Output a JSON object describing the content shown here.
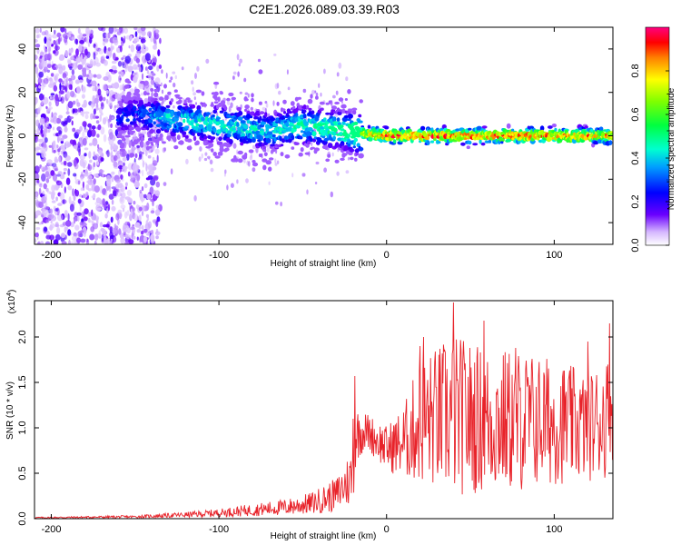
{
  "title": "C2E1.2026.089.03.39.R03",
  "chart_data": [
    {
      "type": "heatmap",
      "name": "spectrogram",
      "xlabel": "Height of straight line (km)",
      "ylabel": "Frequency (Hz)",
      "xlim": [
        -210,
        135
      ],
      "ylim": [
        -50,
        50
      ],
      "xticks": [
        -200,
        -100,
        0,
        100
      ],
      "yticks": [
        -40,
        -20,
        0,
        20,
        40
      ],
      "xtick_labels": [
        "-200",
        "-100",
        "0",
        "100"
      ],
      "ytick_labels": [
        "-40",
        "-20",
        "0",
        "20",
        "40"
      ],
      "colorbar": {
        "label": "Normalized spectral amplitude",
        "range": [
          0,
          1
        ],
        "ticks": [
          0.0,
          0.2,
          0.4,
          0.6,
          0.8
        ],
        "tick_labels": [
          "0.0",
          "0.2",
          "0.4",
          "0.6",
          "0.8"
        ]
      },
      "ridge": {
        "description": "dominant frequency band",
        "x": [
          -210,
          -150,
          -130,
          -100,
          -70,
          -50,
          -30,
          -15,
          0,
          50,
          100,
          135
        ],
        "y_center": [
          0,
          10,
          8,
          5,
          2,
          5,
          3,
          1,
          0,
          0,
          0,
          0
        ],
        "amplitude": [
          0.15,
          0.3,
          0.45,
          0.5,
          0.45,
          0.55,
          0.55,
          0.75,
          0.95,
          0.95,
          0.9,
          0.9
        ]
      }
    },
    {
      "type": "line",
      "name": "snr",
      "xlabel": "Height of straight line (km)",
      "ylabel": "SNR (10 * v/v)",
      "y_multiplier_label": "(x10",
      "y_multiplier_exp": "4",
      "y_multiplier_close": ")",
      "xlim": [
        -210,
        135
      ],
      "ylim": [
        0,
        2.4
      ],
      "xticks": [
        -200,
        -100,
        0,
        100
      ],
      "yticks": [
        0.0,
        0.5,
        1.0,
        1.5,
        2.0
      ],
      "xtick_labels": [
        "-200",
        "-100",
        "0",
        "100"
      ],
      "ytick_labels": [
        "0.0",
        "0.5",
        "1.0",
        "1.5",
        "2.0"
      ],
      "line_color": "#e8232a",
      "envelope": {
        "x": [
          -210,
          -150,
          -120,
          -100,
          -80,
          -60,
          -45,
          -30,
          -20,
          -18,
          -12,
          0,
          10,
          20,
          40,
          60,
          80,
          100,
          120,
          135
        ],
        "baseline": [
          0.01,
          0.02,
          0.04,
          0.06,
          0.09,
          0.12,
          0.16,
          0.25,
          0.45,
          0.9,
          0.95,
          0.75,
          0.8,
          1.0,
          1.05,
          1.0,
          1.0,
          1.0,
          0.95,
          1.1
        ],
        "spread": [
          0.01,
          0.02,
          0.05,
          0.07,
          0.1,
          0.12,
          0.15,
          0.2,
          0.3,
          0.3,
          0.2,
          0.25,
          0.4,
          0.7,
          0.9,
          0.8,
          0.8,
          0.7,
          0.6,
          0.7
        ]
      },
      "peaks": [
        {
          "x": -19,
          "y": 1.57
        },
        {
          "x": -20,
          "y": 1.1
        },
        {
          "x": 20,
          "y": 1.9
        },
        {
          "x": 22,
          "y": 2.0
        },
        {
          "x": 40,
          "y": 2.38
        },
        {
          "x": 58,
          "y": 2.18
        },
        {
          "x": 77,
          "y": 1.88
        },
        {
          "x": 120,
          "y": 1.95
        },
        {
          "x": 133,
          "y": 2.15
        }
      ]
    }
  ]
}
